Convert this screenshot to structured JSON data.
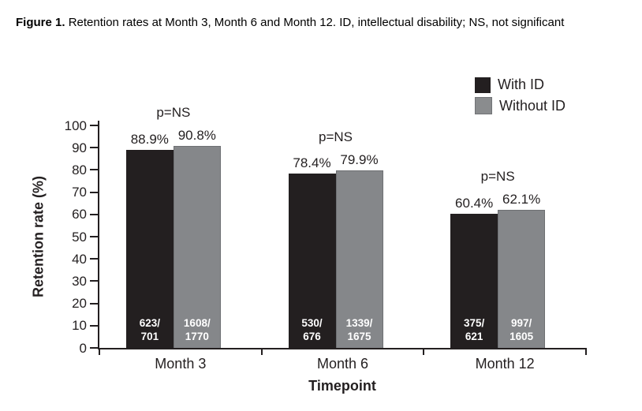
{
  "caption": {
    "label": "Figure 1.",
    "text": "Retention rates at Month 3, Month 6 and Month 12. ID, intellectual disability; NS, not significant"
  },
  "legend": {
    "items": [
      {
        "label": "With ID",
        "color": "#231f20"
      },
      {
        "label": "Without ID",
        "color": "#8a8c8e"
      }
    ]
  },
  "axes": {
    "y_label": "Retention rate (%)",
    "x_label": "Timepoint"
  },
  "chart_data": {
    "type": "bar",
    "title": "",
    "categories": [
      "Month 3",
      "Month 6",
      "Month 12"
    ],
    "series": [
      {
        "name": "With ID",
        "color": "#231f20",
        "values": [
          88.9,
          78.4,
          60.4
        ],
        "value_labels": [
          "88.9%",
          "78.4%",
          "60.4%"
        ],
        "bar_labels": [
          [
            "623/",
            "701"
          ],
          [
            "530/",
            "676"
          ],
          [
            "375/",
            "621"
          ]
        ]
      },
      {
        "name": "Without ID",
        "color": "#85878a",
        "values": [
          90.8,
          79.9,
          62.1
        ],
        "value_labels": [
          "90.8%",
          "79.9%",
          "62.1%"
        ],
        "bar_labels": [
          [
            "1608/",
            "1770"
          ],
          [
            "1339/",
            "1675"
          ],
          [
            "997/",
            "1605"
          ]
        ]
      }
    ],
    "annotations": [
      "p=NS",
      "p=NS",
      "p=NS"
    ],
    "xlabel": "Timepoint",
    "ylabel": "Retention rate (%)",
    "ylim": [
      0,
      100
    ],
    "y_ticks": [
      0,
      10,
      20,
      30,
      40,
      50,
      60,
      70,
      80,
      90,
      100
    ],
    "grid": false,
    "legend_position": "top-right"
  }
}
